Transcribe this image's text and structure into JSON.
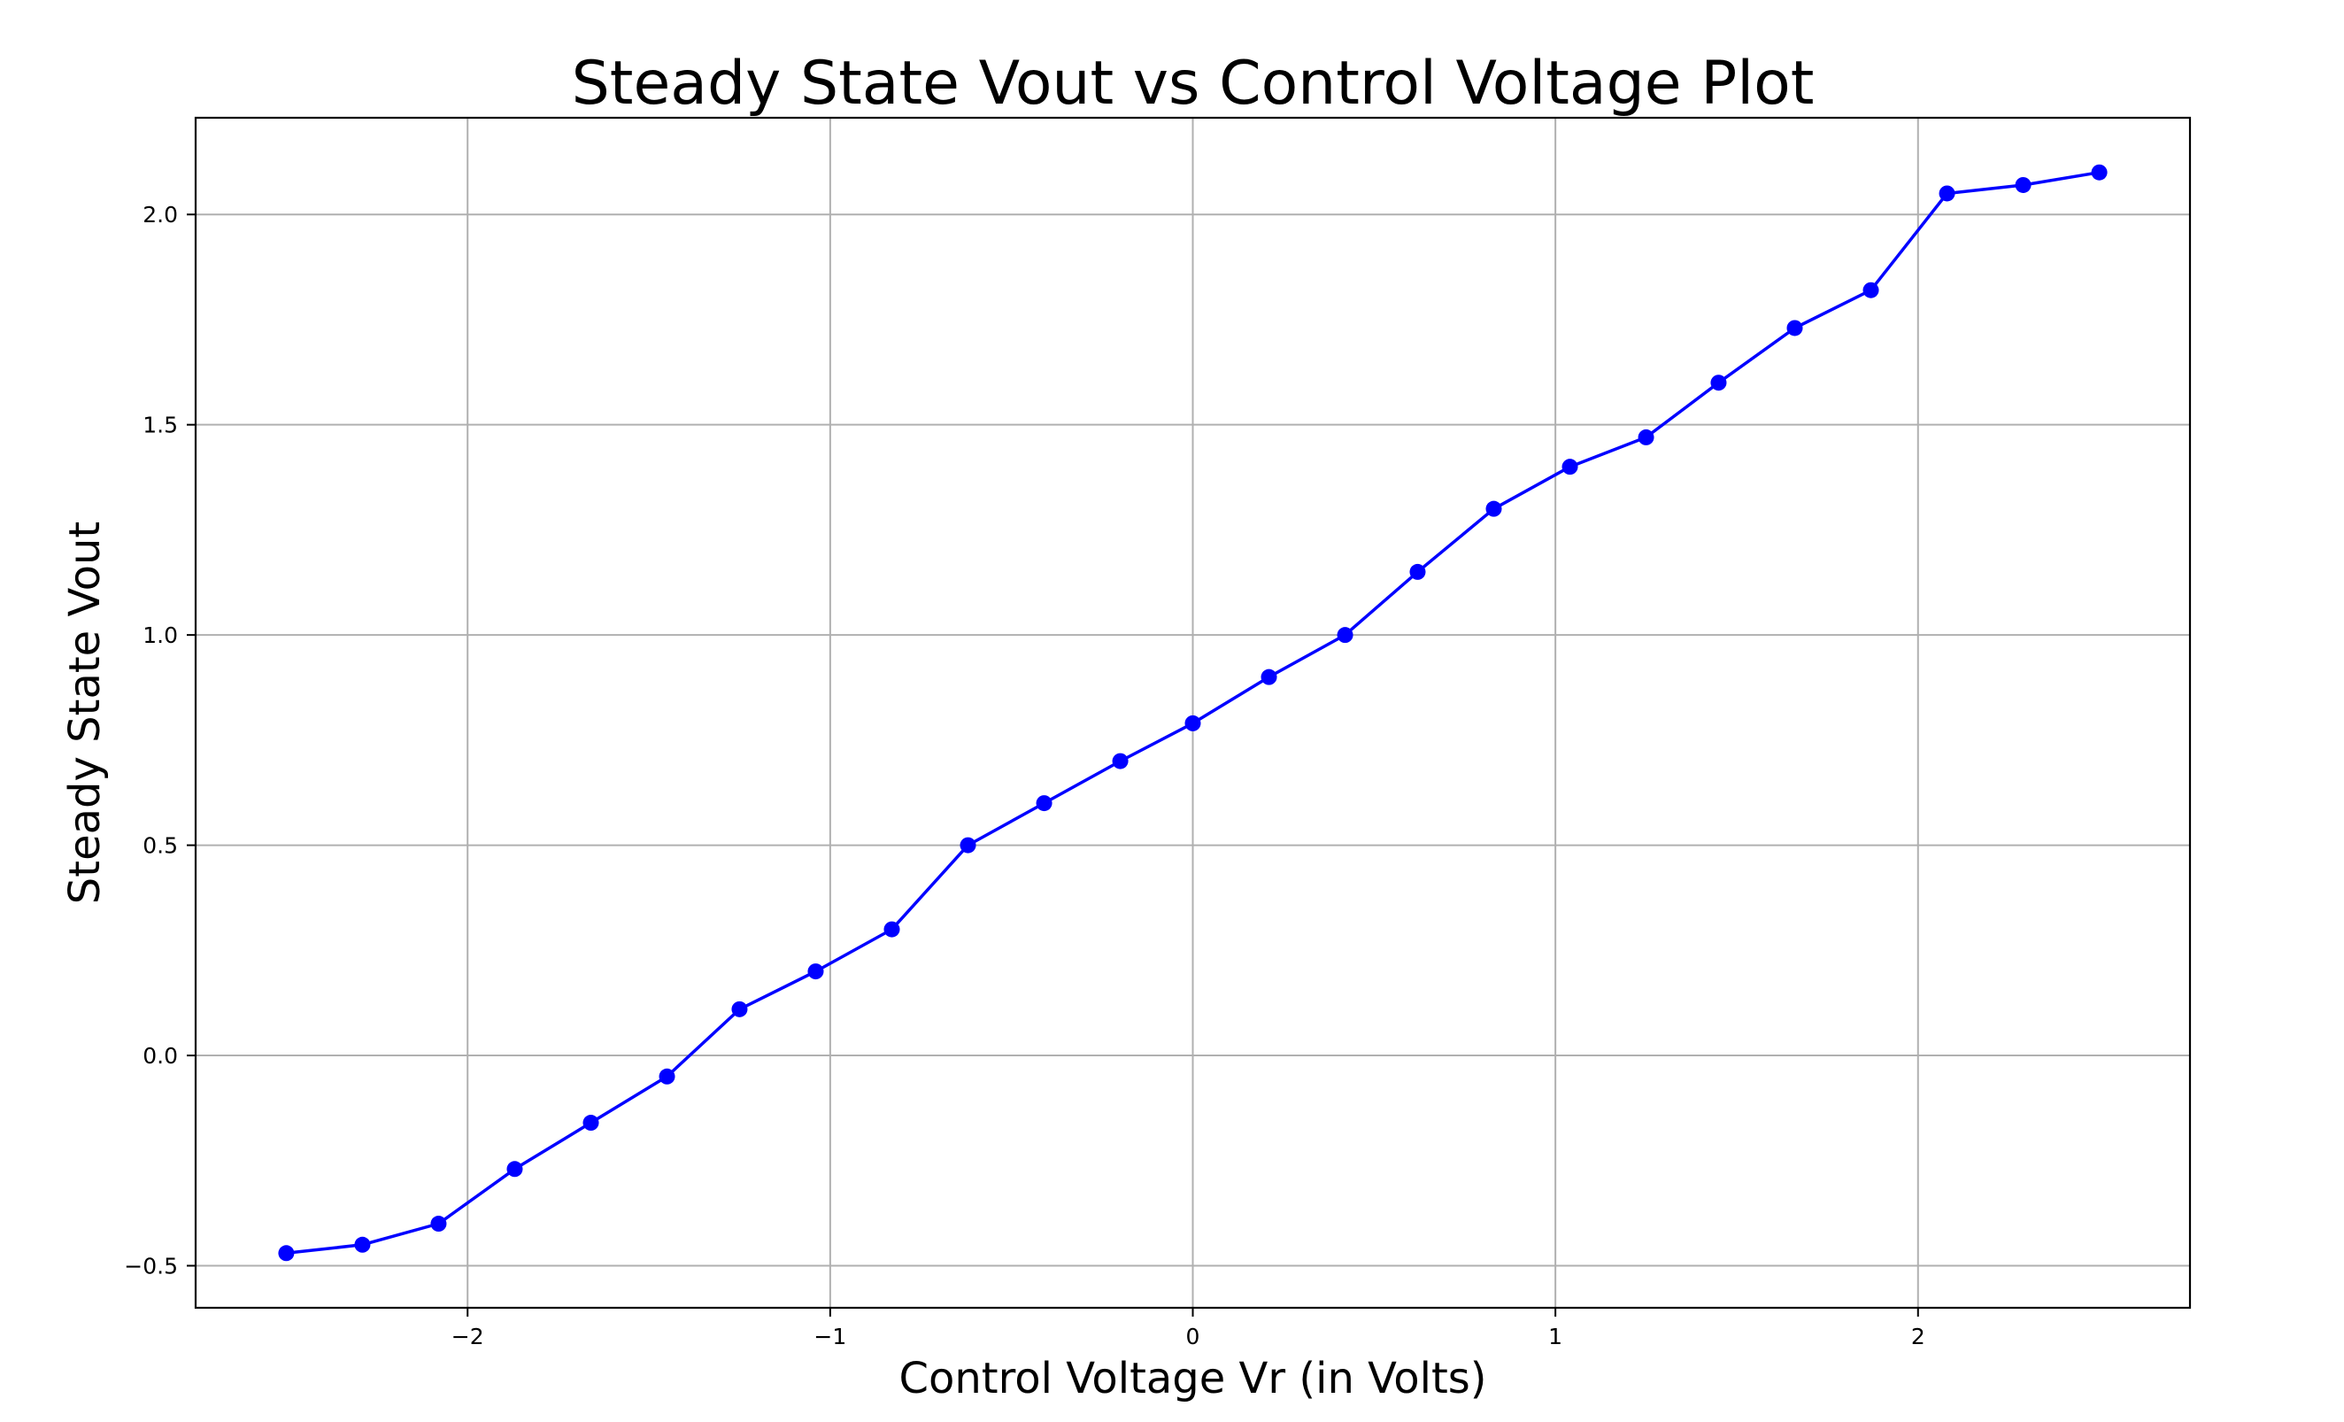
{
  "chart_data": {
    "type": "line",
    "title": "Steady State Vout vs Control Voltage Plot",
    "xlabel": "Control Voltage Vr (in Volts)",
    "ylabel": "Steady State Vout",
    "xlim": [
      -2.75,
      2.75
    ],
    "ylim": [
      -0.6,
      2.23
    ],
    "x_ticks": [
      {
        "value": -2,
        "label": "−2"
      },
      {
        "value": -1,
        "label": "−1"
      },
      {
        "value": 0,
        "label": "0"
      },
      {
        "value": 1,
        "label": "1"
      },
      {
        "value": 2,
        "label": "2"
      }
    ],
    "y_ticks": [
      {
        "value": -0.5,
        "label": "−0.5"
      },
      {
        "value": 0.0,
        "label": "0.0"
      },
      {
        "value": 0.5,
        "label": "0.5"
      },
      {
        "value": 1.0,
        "label": "1.0"
      },
      {
        "value": 1.5,
        "label": "1.5"
      },
      {
        "value": 2.0,
        "label": "2.0"
      }
    ],
    "grid": true,
    "series": [
      {
        "color": "#0000ff",
        "marker": "circle",
        "x": [
          -2.5,
          -2.29,
          -2.08,
          -1.87,
          -1.66,
          -1.45,
          -1.25,
          -1.04,
          -0.83,
          -0.62,
          -0.41,
          -0.2,
          0.0,
          0.21,
          0.42,
          0.62,
          0.83,
          1.04,
          1.25,
          1.45,
          1.66,
          1.87,
          2.08,
          2.29,
          2.5
        ],
        "y": [
          -0.47,
          -0.45,
          -0.4,
          -0.27,
          -0.16,
          -0.05,
          0.11,
          0.2,
          0.3,
          0.5,
          0.6,
          0.7,
          0.79,
          0.9,
          1.0,
          1.15,
          1.3,
          1.4,
          1.47,
          1.6,
          1.73,
          1.82,
          2.05,
          2.07,
          2.1
        ]
      }
    ]
  }
}
